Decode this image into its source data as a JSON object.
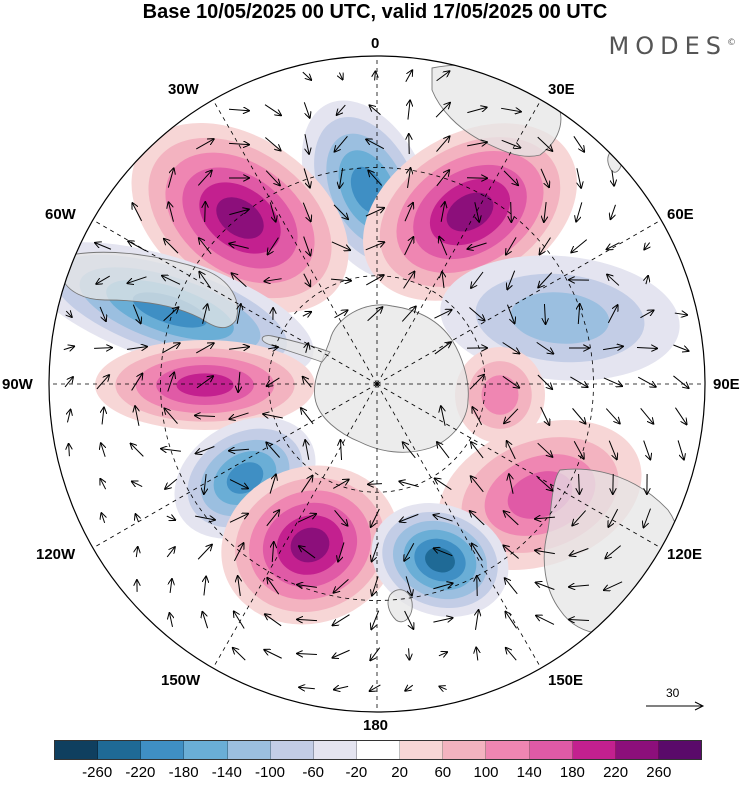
{
  "header": {
    "title": "Base 10/05/2025 00 UTC, valid 17/05/2025 00 UTC",
    "brand": "MODES",
    "brand_mark": "©"
  },
  "map": {
    "projection": "south-polar-stereographic",
    "longitude_labels": [
      "0",
      "30E",
      "60E",
      "90E",
      "120E",
      "150E",
      "180",
      "150W",
      "120W",
      "90W",
      "60W",
      "30W"
    ],
    "land_color": "#e6e6e6",
    "coastline_color": "#777777",
    "grid_style": "dashed",
    "anomalies": [
      {
        "name": "atlantic-negative",
        "sign": "negative",
        "peak": -200
      },
      {
        "name": "south-atlantic-positive",
        "sign": "positive",
        "peak": 220
      },
      {
        "name": "indian-positive",
        "sign": "positive",
        "peak": 240
      },
      {
        "name": "drake-negative",
        "sign": "negative",
        "peak": -180
      },
      {
        "name": "indian-negative",
        "sign": "negative",
        "peak": -100
      },
      {
        "name": "bellingshausen-positive",
        "sign": "positive",
        "peak": 180
      },
      {
        "name": "east-antarctic-positive",
        "sign": "positive",
        "peak": 100
      },
      {
        "name": "pacific-negative",
        "sign": "negative",
        "peak": -200
      },
      {
        "name": "australia-positive",
        "sign": "positive",
        "peak": 140
      },
      {
        "name": "south-pacific-positive",
        "sign": "positive",
        "peak": 240
      },
      {
        "name": "tasman-negative",
        "sign": "negative",
        "peak": -220
      }
    ]
  },
  "reference_vector": {
    "label": "30"
  },
  "legend": {
    "colors": [
      "#0f3f5f",
      "#1f6a96",
      "#3f8fc4",
      "#6aaed6",
      "#9bbfe0",
      "#c3cde6",
      "#e4e4f0",
      "#ffffff",
      "#f7d6d6",
      "#f3b3c0",
      "#ef86b2",
      "#e05aa6",
      "#c3208f",
      "#8c0f7b",
      "#5a0a6a"
    ],
    "labels": [
      "-260",
      "-220",
      "-180",
      "-140",
      "-100",
      "-60",
      "-20",
      "20",
      "60",
      "100",
      "140",
      "180",
      "220",
      "260"
    ]
  }
}
